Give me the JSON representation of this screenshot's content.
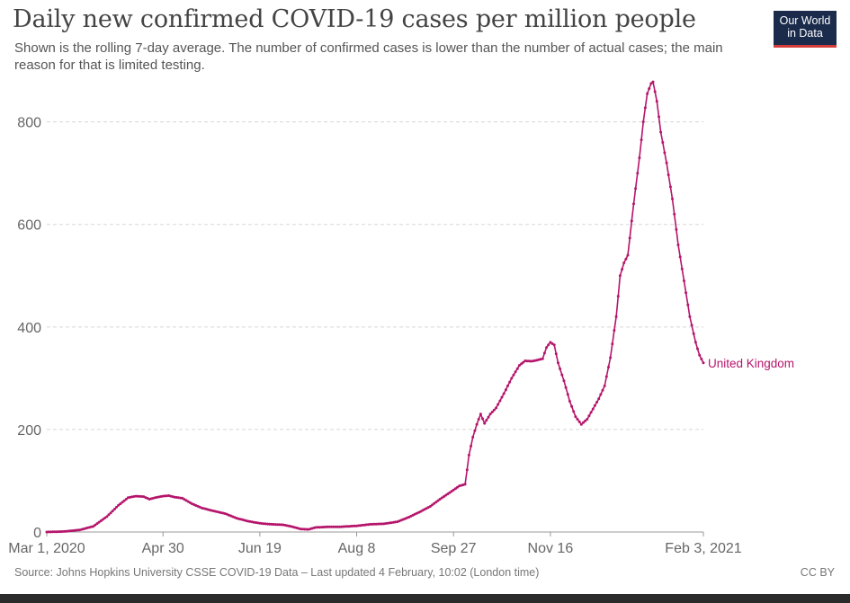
{
  "header": {
    "title": "Daily new confirmed COVID-19 cases per million people",
    "subtitle": "Shown is the rolling 7-day average. The number of confirmed cases is lower than the number of actual cases; the main reason for that is limited testing.",
    "logo_line1": "Our World",
    "logo_line2": "in Data"
  },
  "footer": {
    "source": "Source: Johns Hopkins University CSSE COVID-19 Data – Last updated 4 February, 10:02 (London time)",
    "license": "CC BY"
  },
  "colors": {
    "series": "#b5156b",
    "grid": "#d8d8d8",
    "axis": "#999999",
    "text": "#666666",
    "logo_bg": "#1a2b4c",
    "logo_accent": "#d53b3b"
  },
  "chart_data": {
    "type": "line",
    "x_axis": {
      "type": "date",
      "start": "2020-03-01",
      "end": "2021-02-03",
      "tick_labels": [
        "Mar 1, 2020",
        "Apr 30",
        "Jun 19",
        "Aug 8",
        "Sep 27",
        "Nov 16",
        "Feb 3, 2021"
      ],
      "tick_dates": [
        "2020-03-01",
        "2020-04-30",
        "2020-06-19",
        "2020-08-08",
        "2020-09-27",
        "2020-11-16",
        "2021-02-03"
      ]
    },
    "y_axis": {
      "ticks": [
        0,
        200,
        400,
        600,
        800
      ],
      "ylim": [
        0,
        880
      ]
    },
    "grid": "horizontal dashed",
    "series": [
      {
        "name": "United Kingdom",
        "points": [
          [
            "2020-03-01",
            0
          ],
          [
            "2020-03-10",
            1
          ],
          [
            "2020-03-18",
            4
          ],
          [
            "2020-03-25",
            11
          ],
          [
            "2020-04-01",
            30
          ],
          [
            "2020-04-07",
            52
          ],
          [
            "2020-04-12",
            67
          ],
          [
            "2020-04-16",
            70
          ],
          [
            "2020-04-20",
            69
          ],
          [
            "2020-04-23",
            64
          ],
          [
            "2020-04-26",
            67
          ],
          [
            "2020-04-30",
            70
          ],
          [
            "2020-05-03",
            71
          ],
          [
            "2020-05-06",
            68
          ],
          [
            "2020-05-10",
            66
          ],
          [
            "2020-05-15",
            55
          ],
          [
            "2020-05-20",
            47
          ],
          [
            "2020-05-25",
            42
          ],
          [
            "2020-06-01",
            36
          ],
          [
            "2020-06-07",
            27
          ],
          [
            "2020-06-13",
            21
          ],
          [
            "2020-06-19",
            17
          ],
          [
            "2020-06-25",
            15
          ],
          [
            "2020-07-01",
            14
          ],
          [
            "2020-07-05",
            11
          ],
          [
            "2020-07-10",
            6
          ],
          [
            "2020-07-14",
            5
          ],
          [
            "2020-07-18",
            9
          ],
          [
            "2020-07-24",
            10
          ],
          [
            "2020-07-30",
            10
          ],
          [
            "2020-08-08",
            12
          ],
          [
            "2020-08-15",
            15
          ],
          [
            "2020-08-22",
            16
          ],
          [
            "2020-08-29",
            20
          ],
          [
            "2020-09-04",
            29
          ],
          [
            "2020-09-10",
            40
          ],
          [
            "2020-09-15",
            50
          ],
          [
            "2020-09-20",
            64
          ],
          [
            "2020-09-27",
            82
          ],
          [
            "2020-09-30",
            90
          ],
          [
            "2020-10-03",
            93
          ],
          [
            "2020-10-05",
            150
          ],
          [
            "2020-10-07",
            185
          ],
          [
            "2020-10-09",
            210
          ],
          [
            "2020-10-11",
            230
          ],
          [
            "2020-10-13",
            212
          ],
          [
            "2020-10-16",
            230
          ],
          [
            "2020-10-19",
            242
          ],
          [
            "2020-10-23",
            270
          ],
          [
            "2020-10-27",
            300
          ],
          [
            "2020-10-31",
            325
          ],
          [
            "2020-11-03",
            334
          ],
          [
            "2020-11-06",
            333
          ],
          [
            "2020-11-09",
            335
          ],
          [
            "2020-11-12",
            338
          ],
          [
            "2020-11-14",
            360
          ],
          [
            "2020-11-16",
            370
          ],
          [
            "2020-11-18",
            365
          ],
          [
            "2020-11-20",
            330
          ],
          [
            "2020-11-23",
            295
          ],
          [
            "2020-11-26",
            255
          ],
          [
            "2020-11-29",
            225
          ],
          [
            "2020-12-02",
            210
          ],
          [
            "2020-12-05",
            220
          ],
          [
            "2020-12-08",
            240
          ],
          [
            "2020-12-11",
            260
          ],
          [
            "2020-12-14",
            285
          ],
          [
            "2020-12-17",
            340
          ],
          [
            "2020-12-20",
            420
          ],
          [
            "2020-12-22",
            500
          ],
          [
            "2020-12-24",
            525
          ],
          [
            "2020-12-26",
            540
          ],
          [
            "2020-12-29",
            640
          ],
          [
            "2021-01-01",
            730
          ],
          [
            "2021-01-03",
            800
          ],
          [
            "2021-01-05",
            855
          ],
          [
            "2021-01-07",
            875
          ],
          [
            "2021-01-08",
            878
          ],
          [
            "2021-01-10",
            840
          ],
          [
            "2021-01-12",
            780
          ],
          [
            "2021-01-15",
            720
          ],
          [
            "2021-01-18",
            650
          ],
          [
            "2021-01-21",
            560
          ],
          [
            "2021-01-24",
            490
          ],
          [
            "2021-01-27",
            420
          ],
          [
            "2021-01-30",
            370
          ],
          [
            "2021-02-01",
            345
          ],
          [
            "2021-02-03",
            330
          ]
        ]
      }
    ]
  }
}
